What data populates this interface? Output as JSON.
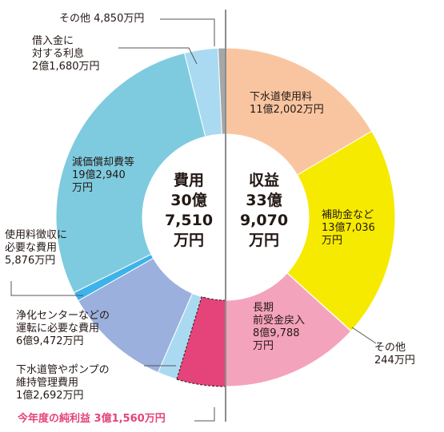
{
  "chart_data": {
    "type": "pie",
    "left_half": {
      "name": "費用",
      "center_text": "費用\n30億\n7,510\n万円",
      "total": "30億7,510万円",
      "slices": [
        {
          "label": "その他 4,850万円",
          "value": 0.485,
          "color": "#a6a6a6"
        },
        {
          "label": "借入金に\n対する利息\n2億1,680万円",
          "value": 2.168,
          "color": "#a9daf2"
        },
        {
          "label": "減価償却費等\n19億2,940\n万円",
          "value": 19.294,
          "color": "#7ecbdf"
        },
        {
          "label": "使用料徴収に\n必要な費用\n5,876万円",
          "value": 0.5876,
          "color": "#3fb2ea"
        },
        {
          "label": "浄化センターなどの\n運転に必要な費用\n6億9,472万円",
          "value": 6.9472,
          "color": "#9bb0dd"
        },
        {
          "label": "下水道管やポンプの\n維持管理費用\n1億2,692万円",
          "value": 1.2692,
          "color": "#a9daf2"
        },
        {
          "label": "今年度の純利益 3億1,560万円",
          "value": 3.156,
          "color": "#e4447a"
        }
      ]
    },
    "right_half": {
      "name": "収益",
      "center_text": "収益\n33億\n9,070\n万円",
      "total": "33億9,070万円",
      "slices": [
        {
          "label": "下水道使用料\n11億2,002万円",
          "value": 11.2002,
          "color": "#f9c5a0"
        },
        {
          "label": "補助金など\n13億7,036\n万円",
          "value": 13.7036,
          "color": "#f6ea00"
        },
        {
          "label": "その他\n244万円",
          "value": 0.0244,
          "color": "#f6ea00"
        },
        {
          "label": "長期\n前受金戻入\n8億9,788\n万円",
          "value": 8.9788,
          "color": "#f4a3bd"
        }
      ]
    }
  }
}
